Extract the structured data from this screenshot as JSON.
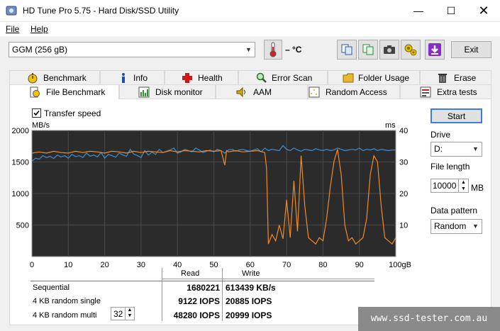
{
  "window": {
    "title": "HD Tune Pro 5.75 - Hard Disk/SSD Utility"
  },
  "menu": {
    "file": "File",
    "help": "Help"
  },
  "toolbar": {
    "drive": "GGM (256 gB)",
    "temperature": "– °C",
    "exit": "Exit"
  },
  "tabs_row1": [
    "Benchmark",
    "Info",
    "Health",
    "Error Scan",
    "Folder Usage",
    "Erase"
  ],
  "tabs_row2": [
    "File Benchmark",
    "Disk monitor",
    "AAM",
    "Random Access",
    "Extra tests"
  ],
  "options": {
    "transfer_speed_label": "Transfer speed",
    "transfer_speed_checked": true,
    "start": "Start",
    "drive_label": "Drive",
    "drive_value": "D:",
    "file_length_label": "File length",
    "file_length_value": "10000",
    "file_length_unit": "MB",
    "data_pattern_label": "Data pattern",
    "data_pattern_value": "Random"
  },
  "chart_data": {
    "type": "line",
    "left_axis_label": "MB/s",
    "right_axis_label": "ms",
    "left_ticks": [
      "2000",
      "1500",
      "1000",
      "500"
    ],
    "right_ticks": [
      "40",
      "30",
      "20",
      "10"
    ],
    "x_ticks": [
      "0",
      "10",
      "20",
      "30",
      "40",
      "50",
      "60",
      "70",
      "80",
      "90",
      "100gB"
    ],
    "ylim": [
      0,
      2000
    ],
    "xlim": [
      0,
      100
    ],
    "series": [
      {
        "color": "#3c8fd8",
        "x": [
          0,
          1,
          2,
          3,
          4,
          5,
          6,
          7,
          8,
          9,
          10,
          11,
          12,
          13,
          14,
          15,
          16,
          17,
          18,
          19,
          20,
          21,
          22,
          23,
          24,
          25,
          26,
          27,
          28,
          29,
          30,
          31,
          32,
          33,
          34,
          35,
          36,
          37,
          38,
          39,
          40,
          41,
          42,
          43,
          44,
          45,
          46,
          47,
          48,
          49,
          50,
          51,
          52,
          53,
          54,
          55,
          56,
          57,
          58,
          59,
          60,
          61,
          62,
          63,
          64,
          65,
          66,
          67,
          68,
          69,
          70,
          71,
          72,
          73,
          74,
          75,
          76,
          77,
          78,
          79,
          80,
          81,
          82,
          83,
          84,
          85,
          86,
          87,
          88,
          89,
          90,
          91,
          92,
          93,
          94,
          95,
          96,
          97,
          98,
          99,
          100
        ],
        "values": [
          1510,
          1560,
          1545,
          1600,
          1570,
          1590,
          1555,
          1610,
          1580,
          1600,
          1560,
          1620,
          1585,
          1600,
          1570,
          1640,
          1590,
          1610,
          1580,
          1650,
          1560,
          1620,
          1600,
          1575,
          1640,
          1610,
          1590,
          1700,
          1625,
          1600,
          1570,
          1680,
          1610,
          1655,
          1620,
          1700,
          1650,
          1670,
          1690,
          1720,
          1640,
          1660,
          1700,
          1680,
          1660,
          1720,
          1690,
          1650,
          1670,
          1690,
          1660,
          1700,
          1680,
          1640,
          1690,
          1700,
          1670,
          1690,
          1700,
          1680,
          1670,
          1690,
          1710,
          1660,
          1720,
          1680,
          1700,
          1690,
          1680,
          1760,
          1700,
          1680,
          1720,
          1690,
          1670,
          1700,
          1690,
          1680,
          1710,
          1690,
          1680,
          1700,
          1680,
          1690,
          1720,
          1700,
          1680,
          1690,
          1700,
          1690,
          1720,
          1680,
          1700,
          1690,
          1710,
          1680,
          1700,
          1690,
          1680,
          1690,
          1690
        ]
      },
      {
        "color": "#f08a24",
        "x": [
          0,
          2,
          4,
          6,
          8,
          10,
          12,
          14,
          16,
          18,
          20,
          22,
          24,
          26,
          28,
          30,
          32,
          34,
          36,
          38,
          40,
          42,
          44,
          46,
          48,
          50,
          52,
          53,
          53.5,
          54,
          55,
          56,
          58,
          60,
          62,
          64,
          64.5,
          65,
          66,
          67,
          68,
          69,
          70,
          71,
          72,
          73,
          74,
          75,
          76,
          77,
          78,
          79,
          80,
          81,
          82,
          83,
          84,
          85,
          86,
          87,
          88,
          89,
          90,
          91,
          92,
          93,
          94,
          95,
          96,
          97,
          98,
          99,
          100
        ],
        "values": [
          1640,
          1660,
          1640,
          1670,
          1650,
          1640,
          1670,
          1650,
          1670,
          1660,
          1640,
          1670,
          1660,
          1640,
          1670,
          1650,
          1670,
          1660,
          1650,
          1680,
          1660,
          1680,
          1670,
          1660,
          1680,
          1670,
          1680,
          1450,
          1680,
          1660,
          1670,
          1680,
          1660,
          1670,
          1680,
          1650,
          1400,
          200,
          350,
          250,
          500,
          280,
          900,
          300,
          1200,
          400,
          1600,
          800,
          300,
          250,
          200,
          300,
          250,
          600,
          1100,
          1500,
          1700,
          1300,
          500,
          250,
          300,
          200,
          250,
          300,
          600,
          1300,
          1600,
          1500,
          800,
          300,
          250,
          200,
          300
        ]
      }
    ]
  },
  "results": {
    "header_read": "Read",
    "header_write": "Write",
    "rows": [
      {
        "label": "Sequential",
        "read": "1680221",
        "write": "613439 KB/s"
      },
      {
        "label": "4 KB random single",
        "read": "9122 IOPS",
        "write": "20885 IOPS"
      },
      {
        "label": "4 KB random multi",
        "read": "48280 IOPS",
        "write": "20999 IOPS"
      }
    ],
    "queue_depth": "32"
  },
  "watermark": "www.ssd-tester.com.au"
}
